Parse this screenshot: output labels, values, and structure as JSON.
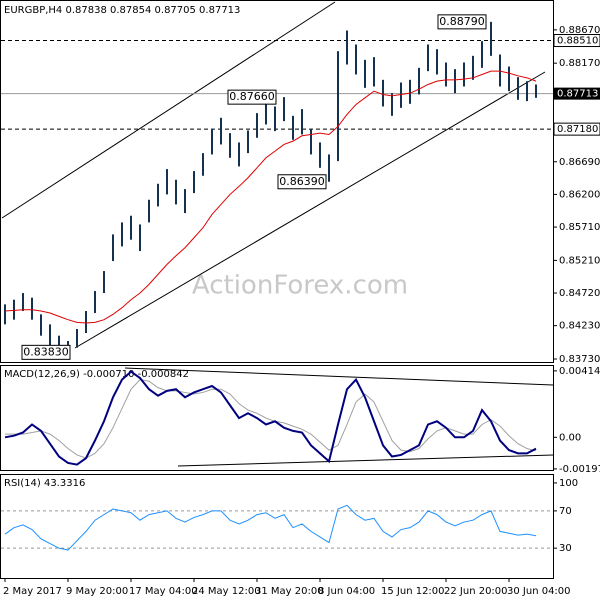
{
  "chart_data": [
    {
      "type": "hilo",
      "title": "EURGBP,H4 0.87838 0.87854 0.87705 0.87713",
      "watermark": "ActionForex.com",
      "bar_color": "#14324f",
      "categories": [
        "2 May 2017",
        null,
        null,
        null,
        null,
        null,
        null,
        "9 May 20:00",
        null,
        null,
        null,
        null,
        null,
        null,
        "17 May 04:00",
        null,
        null,
        null,
        null,
        null,
        null,
        "24 May 12:00",
        null,
        null,
        null,
        null,
        null,
        null,
        "31 May 20:00",
        null,
        null,
        null,
        null,
        null,
        null,
        "8 Jun 04:00",
        null,
        null,
        null,
        null,
        null,
        null,
        "15 Jun 12:00",
        null,
        null,
        null,
        null,
        null,
        null,
        "22 Jun 20:00",
        null,
        null,
        null,
        null,
        null,
        null,
        "30 Jun 04:00",
        null,
        null,
        null
      ],
      "high": [
        0.8455,
        0.8462,
        0.8472,
        0.8465,
        0.844,
        0.8425,
        0.8408,
        0.84,
        0.8418,
        0.8445,
        0.8475,
        0.8505,
        0.856,
        0.8578,
        0.8588,
        0.8575,
        0.8612,
        0.8636,
        0.8658,
        0.8642,
        0.8628,
        0.8655,
        0.8682,
        0.8718,
        0.8735,
        0.8712,
        0.8698,
        0.8716,
        0.8742,
        0.876,
        0.8752,
        0.8766,
        0.8738,
        0.8748,
        0.8718,
        0.8698,
        0.868,
        0.8835,
        0.8866,
        0.8845,
        0.8822,
        0.8826,
        0.8792,
        0.8772,
        0.8788,
        0.8792,
        0.881,
        0.8845,
        0.8838,
        0.8818,
        0.8808,
        0.8818,
        0.8828,
        0.885,
        0.8879,
        0.883,
        0.8812,
        0.8796,
        0.879,
        0.8785
      ],
      "low": [
        0.8425,
        0.8432,
        0.8445,
        0.8432,
        0.8408,
        0.8392,
        0.8384,
        0.8383,
        0.839,
        0.8412,
        0.8442,
        0.8472,
        0.852,
        0.8542,
        0.8552,
        0.8535,
        0.8578,
        0.8602,
        0.862,
        0.8605,
        0.8592,
        0.8622,
        0.8648,
        0.868,
        0.8695,
        0.8675,
        0.8662,
        0.8682,
        0.8705,
        0.8725,
        0.8715,
        0.873,
        0.8702,
        0.871,
        0.868,
        0.866,
        0.8639,
        0.867,
        0.8815,
        0.88,
        0.878,
        0.8782,
        0.8752,
        0.8738,
        0.875,
        0.8756,
        0.877,
        0.8805,
        0.88,
        0.8782,
        0.8772,
        0.8782,
        0.8792,
        0.881,
        0.8828,
        0.8782,
        0.8775,
        0.8762,
        0.876,
        0.8765
      ],
      "ma": {
        "color": "#e00000",
        "values": [
          0.8445,
          0.8446,
          0.8447,
          0.8447,
          0.8445,
          0.8442,
          0.8437,
          0.8432,
          0.8428,
          0.8427,
          0.8428,
          0.8432,
          0.844,
          0.845,
          0.8462,
          0.8472,
          0.8485,
          0.85,
          0.8515,
          0.8528,
          0.854,
          0.8555,
          0.857,
          0.859,
          0.8605,
          0.862,
          0.8632,
          0.8645,
          0.866,
          0.8675,
          0.8685,
          0.8695,
          0.87,
          0.8708,
          0.871,
          0.8712,
          0.871,
          0.8722,
          0.874,
          0.8755,
          0.8765,
          0.8775,
          0.877,
          0.8768,
          0.877,
          0.8772,
          0.8778,
          0.8785,
          0.879,
          0.8792,
          0.8792,
          0.8793,
          0.8795,
          0.88,
          0.8805,
          0.8805,
          0.8802,
          0.8798,
          0.8795,
          0.879
        ]
      },
      "ylim": [
        0.83685,
        0.89088
      ],
      "yticks": [
        {
          "value": 0.8867,
          "label": "0.88670"
        },
        {
          "value": 0.8817,
          "label": "0.88170"
        },
        {
          "value": 0.8669,
          "label": "0.86690"
        },
        {
          "value": 0.862,
          "label": "0.86200"
        },
        {
          "value": 0.8571,
          "label": "0.85710"
        },
        {
          "value": 0.8521,
          "label": "0.85210"
        },
        {
          "value": 0.8472,
          "label": "0.84720"
        },
        {
          "value": 0.8423,
          "label": "0.84230"
        },
        {
          "value": 0.8373,
          "label": "0.83730"
        }
      ],
      "levels": [
        {
          "value": 0.8851,
          "label": "0.88510"
        },
        {
          "value": 0.8718,
          "label": "0.87180"
        }
      ],
      "last_price": 0.87713,
      "annotations": [
        {
          "value": 0.8383,
          "label": "0.83830"
        },
        {
          "value": 0.8766,
          "label": "0.87660"
        },
        {
          "value": 0.8639,
          "label": "0.86390"
        },
        {
          "value": 0.8879,
          "label": "0.88790"
        }
      ]
    },
    {
      "type": "line",
      "title": "MACD(12,26,9) -0.000710 -0.000842",
      "series": [
        {
          "color": "#000080",
          "values": [
            0.0,
            0.0001,
            0.0003,
            0.0008,
            0.0004,
            -0.0004,
            -0.0012,
            -0.0016,
            -0.0017,
            -0.0013,
            -0.0002,
            0.001,
            0.0025,
            0.0036,
            0.0041,
            0.0037,
            0.003,
            0.0026,
            0.0029,
            0.003,
            0.0025,
            0.0028,
            0.003,
            0.0032,
            0.0028,
            0.002,
            0.0012,
            0.0015,
            0.0012,
            0.0008,
            0.001,
            0.0006,
            0.0004,
            0.0003,
            -0.0005,
            -0.001,
            -0.0015,
            0.0008,
            0.003,
            0.0036,
            0.0025,
            0.001,
            -0.0005,
            -0.0012,
            -0.0011,
            -0.0008,
            -0.0005,
            0.0008,
            0.001,
            0.0006,
            0.0,
            0.0,
            0.0004,
            0.0017,
            0.001,
            -0.0002,
            -0.0008,
            -0.001,
            -0.001,
            -0.00071
          ]
        },
        {
          "color": "#a0a0a0",
          "values": [
            0.0002,
            0.0002,
            0.0002,
            0.0003,
            0.0004,
            0.0002,
            -0.0002,
            -0.0007,
            -0.0011,
            -0.0013,
            -0.001,
            -0.0004,
            0.0006,
            0.0018,
            0.003,
            0.0036,
            0.0035,
            0.0031,
            0.0029,
            0.0029,
            0.0028,
            0.0027,
            0.0028,
            0.003,
            0.003,
            0.0027,
            0.0021,
            0.0017,
            0.0015,
            0.0012,
            0.001,
            0.0009,
            0.0007,
            0.0005,
            0.0002,
            -0.0003,
            -0.0008,
            -0.0005,
            0.0008,
            0.0022,
            0.0027,
            0.0022,
            0.001,
            -0.0002,
            -0.0008,
            -0.0009,
            -0.0007,
            -0.0001,
            0.0004,
            0.0006,
            0.0004,
            0.0002,
            0.0002,
            0.0008,
            0.0011,
            0.0007,
            0.0001,
            -0.0004,
            -0.0007,
            -0.000842
          ]
        }
      ],
      "ylim": [
        -0.00204,
        0.00445
      ],
      "yticks": [
        0.004145,
        {
          "value": 0,
          "label": "0.00"
        },
        -0.001972
      ]
    },
    {
      "type": "line",
      "title": "RSI(14) 43.3316",
      "series": [
        {
          "color": "#1e90ff",
          "values": [
            45,
            52,
            55,
            50,
            40,
            35,
            30,
            28,
            38,
            48,
            60,
            66,
            72,
            70,
            68,
            60,
            66,
            68,
            70,
            62,
            58,
            63,
            66,
            70,
            70,
            60,
            56,
            60,
            66,
            68,
            62,
            66,
            52,
            56,
            48,
            42,
            36,
            72,
            76,
            66,
            60,
            62,
            48,
            42,
            50,
            52,
            58,
            70,
            66,
            58,
            54,
            58,
            60,
            66,
            70,
            48,
            46,
            44,
            45,
            43.3316
          ]
        }
      ],
      "ylim": [
        -2,
        108.5
      ],
      "yticks": [
        100,
        70,
        30
      ],
      "dashed_ticks": [
        70,
        30
      ]
    }
  ]
}
